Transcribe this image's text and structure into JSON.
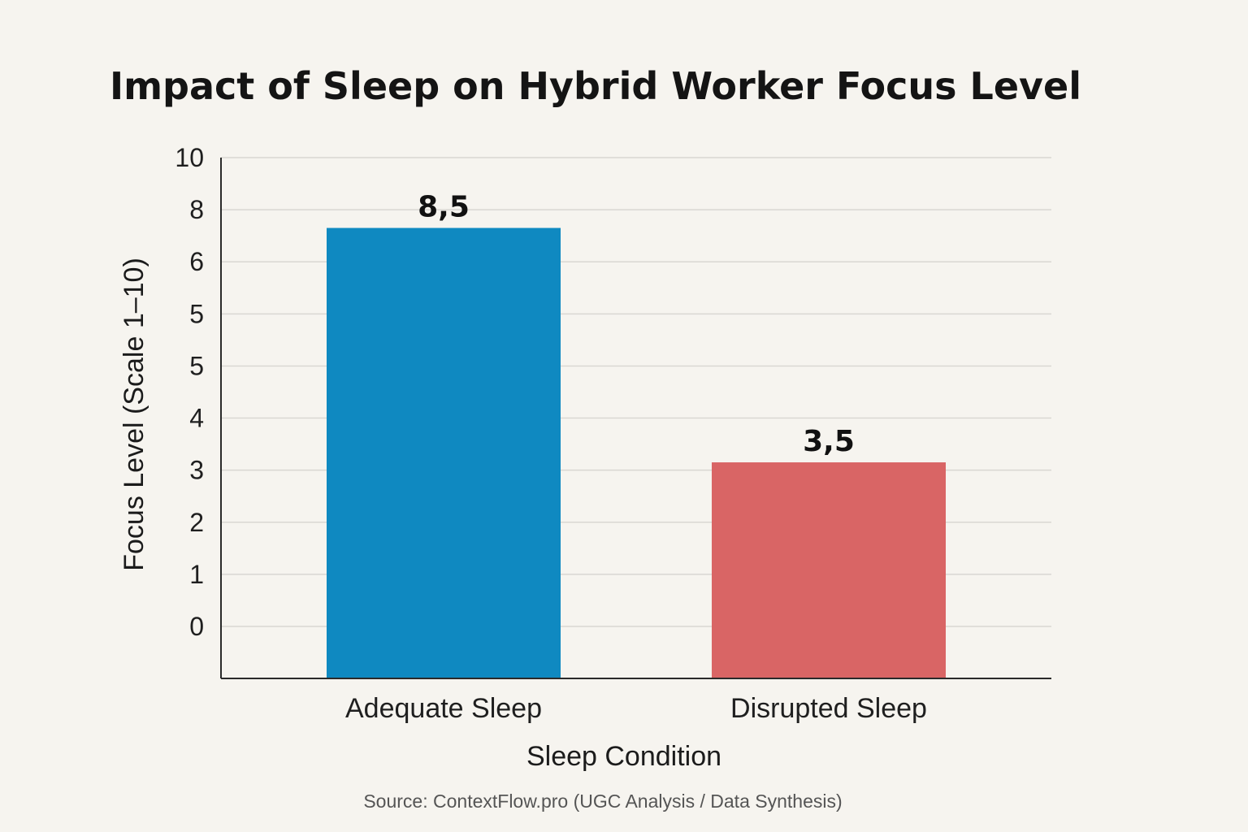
{
  "chart_data": {
    "type": "bar",
    "title": "Impact of Sleep on Hybrid Worker Focus Level",
    "xlabel": "Sleep Condition",
    "ylabel": "Focus Level (Scale 1–10)",
    "categories": [
      "Adequate Sleep",
      "Disrupted Sleep"
    ],
    "values": [
      8.5,
      3.5
    ],
    "value_labels": [
      "8,5",
      "3,5"
    ],
    "colors": [
      "#0f89c1",
      "#d96565"
    ],
    "y_tick_labels": [
      "0",
      "1",
      "2",
      "3",
      "4",
      "5",
      "5",
      "6",
      "8",
      "10"
    ],
    "ylim": [
      0,
      10
    ],
    "grid": true,
    "source": "Source: ContextFlow.pro (UGC Analysis / Data Synthesis)"
  }
}
